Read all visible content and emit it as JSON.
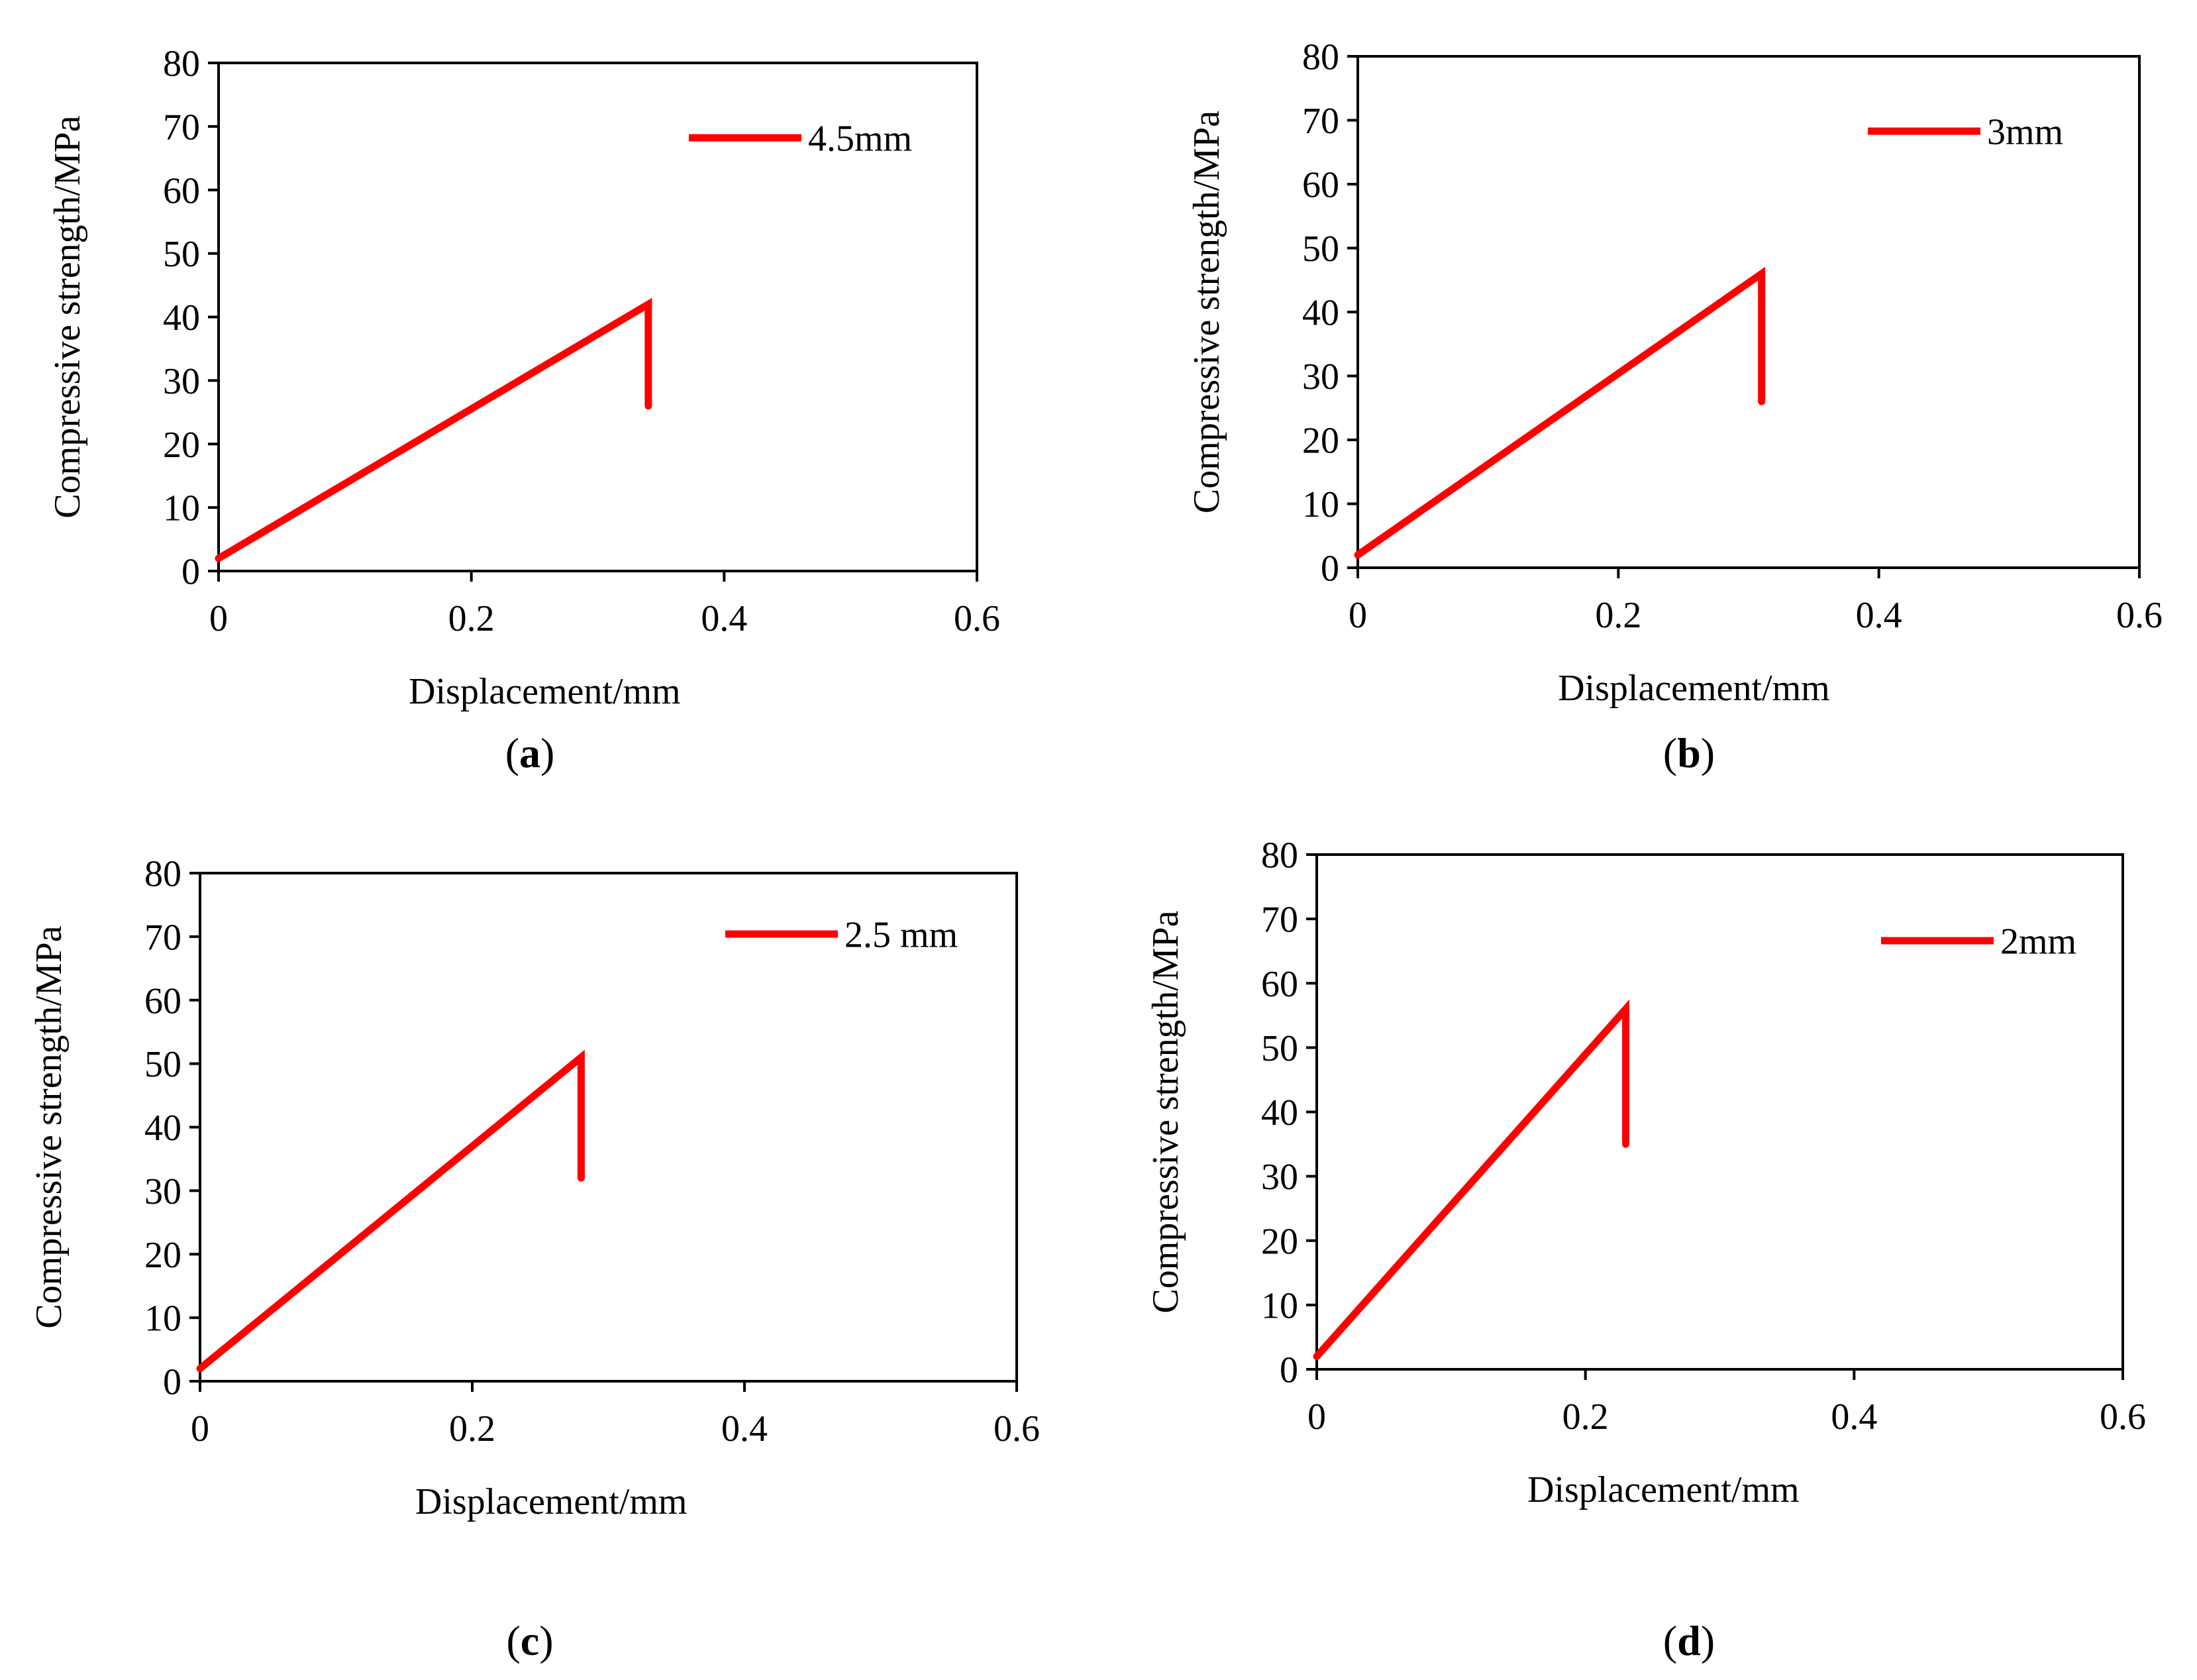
{
  "chart_data": [
    {
      "type": "line",
      "panel_label": "a",
      "xlabel": "Displacement/mm",
      "ylabel": "Compressive strength/MPa",
      "xlim": [
        0,
        0.6
      ],
      "ylim": [
        0,
        80
      ],
      "xticks": [
        "0",
        "0.2",
        "0.4",
        "0.6"
      ],
      "yticks": [
        "0",
        "10",
        "20",
        "30",
        "40",
        "50",
        "60",
        "70",
        "80"
      ],
      "legend_position": "top-right",
      "series": [
        {
          "name": "4.5mm",
          "color": "#ff0000",
          "x": [
            0,
            0.34,
            0.34
          ],
          "y": [
            2,
            42,
            26
          ]
        }
      ]
    },
    {
      "type": "line",
      "panel_label": "b",
      "xlabel": "Displacement/mm",
      "ylabel": "Compressive strength/MPa",
      "xlim": [
        0,
        0.6
      ],
      "ylim": [
        0,
        80
      ],
      "xticks": [
        "0",
        "0.2",
        "0.4",
        "0.6"
      ],
      "yticks": [
        "0",
        "10",
        "20",
        "30",
        "40",
        "50",
        "60",
        "70",
        "80"
      ],
      "legend_position": "top-right",
      "series": [
        {
          "name": "3mm",
          "color": "#ff0000",
          "x": [
            0,
            0.31,
            0.31
          ],
          "y": [
            2,
            46,
            26
          ]
        }
      ]
    },
    {
      "type": "line",
      "panel_label": "c",
      "xlabel": "Displacement/mm",
      "ylabel": "Compressive strength/MPa",
      "xlim": [
        0,
        0.6
      ],
      "ylim": [
        0,
        80
      ],
      "xticks": [
        "0",
        "0.2",
        "0.4",
        "0.6"
      ],
      "yticks": [
        "0",
        "10",
        "20",
        "30",
        "40",
        "50",
        "60",
        "70",
        "80"
      ],
      "legend_position": "top-right",
      "series": [
        {
          "name": "2.5 mm",
          "color": "#ff0000",
          "x": [
            0,
            0.28,
            0.28
          ],
          "y": [
            2,
            51,
            32
          ]
        }
      ]
    },
    {
      "type": "line",
      "panel_label": "d",
      "xlabel": "Displacement/mm",
      "ylabel": "Compressive strength/MPa",
      "xlim": [
        0,
        0.6
      ],
      "ylim": [
        0,
        80
      ],
      "xticks": [
        "0",
        "0.2",
        "0.4",
        "0.6"
      ],
      "yticks": [
        "0",
        "10",
        "20",
        "30",
        "40",
        "50",
        "60",
        "70",
        "80"
      ],
      "legend_position": "top-right",
      "series": [
        {
          "name": "2mm",
          "color": "#ff0000",
          "x": [
            0,
            0.23,
            0.23
          ],
          "y": [
            2,
            56,
            35
          ]
        }
      ]
    }
  ]
}
